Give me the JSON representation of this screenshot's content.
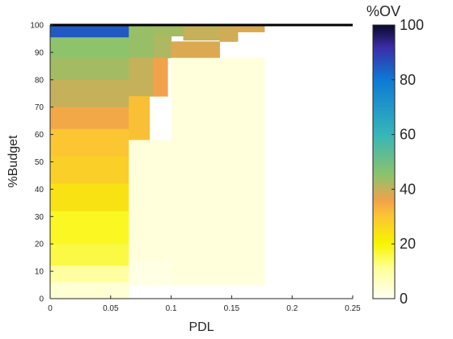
{
  "chart_data": {
    "type": "heatmap",
    "title": "",
    "xlabel": "PDL",
    "ylabel": "%Budget",
    "xlim": [
      0,
      0.25
    ],
    "ylim": [
      0,
      100
    ],
    "x_ticks": [
      0,
      0.05,
      0.1,
      0.15,
      0.2,
      0.25
    ],
    "x_tick_labels": [
      "0",
      "0.05",
      "0.1",
      "0.15",
      "0.2",
      "0.25"
    ],
    "y_ticks": [
      0,
      10,
      20,
      30,
      40,
      50,
      60,
      70,
      80,
      90,
      100
    ],
    "y_tick_labels": [
      "0",
      "10",
      "20",
      "30",
      "40",
      "50",
      "60",
      "70",
      "80",
      "90",
      "100"
    ],
    "grid": false,
    "colorbar": {
      "label": "%OV",
      "range": [
        0,
        100
      ],
      "ticks": [
        0,
        20,
        40,
        60,
        80,
        100
      ],
      "tick_labels": [
        "0",
        "20",
        "40",
        "60",
        "80",
        "100"
      ],
      "colormap": [
        "#fffff5",
        "#ffff99",
        "#f8f500",
        "#fbc631",
        "#f1a24b",
        "#8dc36a",
        "#35b6b9",
        "#0e79d6",
        "#3b2ba6",
        "#0a0a28"
      ]
    },
    "reference_line": {
      "y": 100,
      "color": "#000000"
    },
    "cells": [
      {
        "x": [
          0.0,
          0.065
        ],
        "y": [
          95.5,
          100
        ],
        "v": 85
      },
      {
        "x": [
          0.065,
          0.085
        ],
        "y": [
          98,
          100
        ],
        "v": 44
      },
      {
        "x": [
          0.085,
          0.11
        ],
        "y": [
          96,
          100
        ],
        "v": 43
      },
      {
        "x": [
          0.11,
          0.14
        ],
        "y": [
          94.5,
          100
        ],
        "v": 40
      },
      {
        "x": [
          0.14,
          0.155
        ],
        "y": [
          94,
          100
        ],
        "v": 39
      },
      {
        "x": [
          0.155,
          0.177
        ],
        "y": [
          97.5,
          100
        ],
        "v": 38
      },
      {
        "x": [
          0.0,
          0.065
        ],
        "y": [
          88,
          95.5
        ],
        "v": 45
      },
      {
        "x": [
          0.065,
          0.085
        ],
        "y": [
          88,
          98
        ],
        "v": 44
      },
      {
        "x": [
          0.085,
          0.1
        ],
        "y": [
          88,
          96
        ],
        "v": 42
      },
      {
        "x": [
          0.1,
          0.14
        ],
        "y": [
          88,
          94
        ],
        "v": 38
      },
      {
        "x": [
          0.0,
          0.065
        ],
        "y": [
          80,
          88
        ],
        "v": 43
      },
      {
        "x": [
          0.065,
          0.085
        ],
        "y": [
          74,
          88
        ],
        "v": 40
      },
      {
        "x": [
          0.085,
          0.097
        ],
        "y": [
          74,
          88
        ],
        "v": 36
      },
      {
        "x": [
          0.0,
          0.065
        ],
        "y": [
          70,
          80
        ],
        "v": 40
      },
      {
        "x": [
          0.0,
          0.065
        ],
        "y": [
          62,
          70
        ],
        "v": 35
      },
      {
        "x": [
          0.065,
          0.082
        ],
        "y": [
          58,
          74
        ],
        "v": 31
      },
      {
        "x": [
          0.0,
          0.065
        ],
        "y": [
          52,
          62
        ],
        "v": 30
      },
      {
        "x": [
          0.0,
          0.065
        ],
        "y": [
          42,
          52
        ],
        "v": 28
      },
      {
        "x": [
          0.0,
          0.065
        ],
        "y": [
          32,
          42
        ],
        "v": 24
      },
      {
        "x": [
          0.0,
          0.065
        ],
        "y": [
          20,
          32
        ],
        "v": 18
      },
      {
        "x": [
          0.0,
          0.065
        ],
        "y": [
          12,
          20
        ],
        "v": 16
      },
      {
        "x": [
          0.0,
          0.065
        ],
        "y": [
          6,
          12
        ],
        "v": 10
      },
      {
        "x": [
          0.0,
          0.065
        ],
        "y": [
          0,
          6
        ],
        "v": 4
      },
      {
        "x": [
          0.065,
          0.1
        ],
        "y": [
          14,
          58
        ],
        "v": 3
      },
      {
        "x": [
          0.1,
          0.177
        ],
        "y": [
          5,
          88
        ],
        "v": 3
      },
      {
        "x": [
          0.065,
          0.1
        ],
        "y": [
          5,
          14
        ],
        "v": 2
      }
    ]
  }
}
